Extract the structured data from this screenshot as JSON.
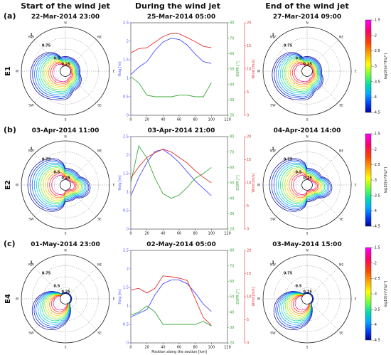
{
  "headers": {
    "start": "Start of the wind jet",
    "during": "During the wind jet",
    "end": "End of the wind jet"
  },
  "rows": [
    {
      "panel": "(a)",
      "event": "E1",
      "start_date": "22-Mar-2014   23:00",
      "during_date": "25-Mar-2014   05:00",
      "end_date": "27-Mar-2014   09:00"
    },
    {
      "panel": "(b)",
      "event": "E2",
      "start_date": "03-Apr-2014   11:00",
      "during_date": "03-Apr-2014   21:00",
      "end_date": "04-Apr-2014   14:00"
    },
    {
      "panel": "(c)",
      "event": "E4",
      "start_date": "01-May-2014   23:00",
      "during_date": "02-May-2014   05:00",
      "end_date": "03-May-2014   15:00"
    }
  ],
  "polar": {
    "directions": [
      "N",
      "NE",
      "E",
      "SE",
      "S",
      "SW",
      "W",
      "NW"
    ],
    "ring_labels": [
      "1",
      "0.75",
      "0.5",
      "0.25"
    ]
  },
  "colorbar": {
    "label": "log10(m²/Hz/°)",
    "ticks": [
      "-1.5",
      "-2",
      "-2.5",
      "-3",
      "-3.5",
      "-4",
      "-4.5"
    ],
    "colors": [
      "#ff00ff",
      "#ff0066",
      "#ff4400",
      "#ffaa00",
      "#ffff00",
      "#66ff44",
      "#00ddaa",
      "#00aaff",
      "#0044ff",
      "#000099"
    ]
  },
  "series_colors": {
    "hsig": "#4a4aff",
    "dspr": "#3aa83a",
    "wind": "#e03030"
  },
  "chart_data": [
    {
      "type": "line",
      "xlabel": "",
      "ylabel_left": "Hsig [m]",
      "ylabel_mid": "DSPR [°]",
      "ylabel_right": "Wind [m/s]",
      "xlim": [
        0,
        120
      ],
      "ylim_left": [
        0,
        2.5
      ],
      "ylim_mid": [
        20,
        80
      ],
      "ylim_right": [
        0,
        20
      ],
      "x": [
        0,
        10,
        20,
        30,
        40,
        50,
        60,
        70,
        80,
        90,
        100
      ],
      "x_ticks": [
        "0",
        "20",
        "40",
        "60",
        "80",
        "100",
        "120"
      ],
      "left_ticks": [
        "0",
        "0.5",
        "1",
        "1.5",
        "2",
        "2.5"
      ],
      "mid_ticks": [
        "20",
        "30",
        "40",
        "50",
        "60",
        "70",
        "80"
      ],
      "right_ticks": [
        "0",
        "5",
        "10",
        "15",
        "20"
      ],
      "series": [
        {
          "name": "Hsig",
          "axis": "left",
          "values": [
            1.1,
            1.3,
            1.45,
            1.75,
            1.98,
            2.08,
            2.05,
            1.9,
            1.65,
            1.45,
            1.4
          ]
        },
        {
          "name": "DSPR",
          "axis": "mid",
          "values": [
            45,
            41,
            33,
            32,
            32,
            32,
            33,
            33,
            32,
            32,
            41
          ]
        },
        {
          "name": "Wind",
          "axis": "right",
          "values": [
            13.5,
            14.4,
            14.6,
            15.8,
            17.0,
            17.7,
            17.6,
            16.8,
            15.9,
            14.9,
            14.6
          ]
        }
      ]
    },
    {
      "type": "line",
      "xlabel": "",
      "ylabel_left": "Hsig [m]",
      "ylabel_mid": "DSPR [°]",
      "ylabel_right": "Wind [m/s]",
      "xlim": [
        0,
        120
      ],
      "ylim_left": [
        0,
        2.5
      ],
      "ylim_mid": [
        20,
        80
      ],
      "ylim_right": [
        0,
        20
      ],
      "x": [
        0,
        10,
        20,
        30,
        40,
        50,
        60,
        70,
        80,
        90,
        100
      ],
      "x_ticks": [
        "0",
        "20",
        "40",
        "60",
        "80",
        "100",
        "120"
      ],
      "left_ticks": [
        "0",
        "0.5",
        "1",
        "1.5",
        "2",
        "2.5"
      ],
      "mid_ticks": [
        "20",
        "30",
        "40",
        "50",
        "60",
        "70",
        "80"
      ],
      "right_ticks": [
        "0",
        "5",
        "10",
        "15",
        "20"
      ],
      "series": [
        {
          "name": "Hsig",
          "axis": "left",
          "values": [
            0.9,
            1.4,
            1.8,
            2.1,
            2.15,
            2.0,
            1.8,
            1.55,
            1.3,
            1.1,
            0.9
          ]
        },
        {
          "name": "DSPR",
          "axis": "mid",
          "values": [
            50,
            74,
            66,
            53,
            43,
            40,
            42,
            47,
            53,
            56,
            60
          ]
        },
        {
          "name": "Wind",
          "axis": "right",
          "values": [
            11.0,
            13.5,
            15.5,
            16.5,
            17.3,
            16.7,
            15.5,
            14.3,
            12.6,
            11.2,
            10.0
          ]
        }
      ]
    },
    {
      "type": "line",
      "xlabel": "Position along the section [km]",
      "ylabel_left": "Hsig [m]",
      "ylabel_mid": "DSPR [°]",
      "ylabel_right": "Wind [m/s]",
      "xlim": [
        0,
        120
      ],
      "ylim_left": [
        0,
        2.5
      ],
      "ylim_mid": [
        20,
        80
      ],
      "ylim_right": [
        0,
        20
      ],
      "x": [
        0,
        10,
        20,
        30,
        40,
        50,
        60,
        70,
        80,
        90,
        100
      ],
      "x_ticks": [
        "0",
        "20",
        "40",
        "60",
        "80",
        "100",
        "120"
      ],
      "left_ticks": [
        "0",
        "0.5",
        "1",
        "1.5",
        "2",
        "2.5"
      ],
      "mid_ticks": [
        "20",
        "30",
        "40",
        "50",
        "60",
        "70",
        "80"
      ],
      "right_ticks": [
        "0",
        "5",
        "10",
        "15",
        "20"
      ],
      "series": [
        {
          "name": "Hsig",
          "axis": "left",
          "values": [
            0.7,
            0.8,
            0.9,
            1.3,
            1.6,
            1.7,
            1.7,
            1.6,
            1.35,
            1.05,
            0.85
          ]
        },
        {
          "name": "DSPR",
          "axis": "mid",
          "values": [
            38,
            40,
            44,
            40,
            32,
            32,
            32,
            32,
            32,
            34,
            31
          ]
        },
        {
          "name": "Wind",
          "axis": "right",
          "values": [
            11.5,
            11.8,
            10.8,
            11.8,
            14.5,
            14.3,
            14.0,
            13.5,
            9.5,
            5.5,
            3.8
          ]
        }
      ]
    }
  ]
}
